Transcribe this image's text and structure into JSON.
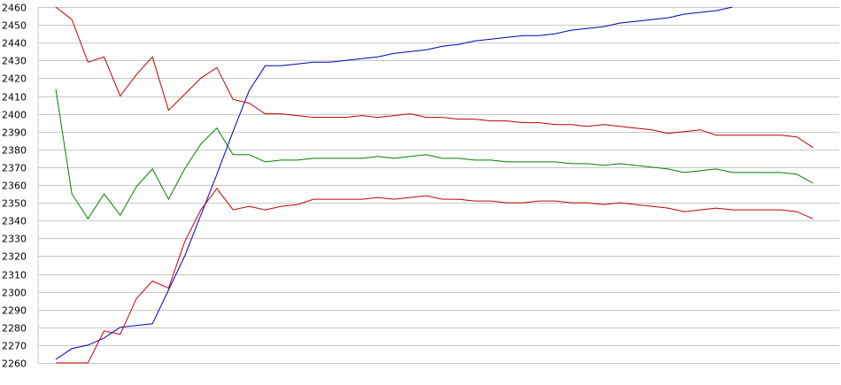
{
  "chart_data": {
    "type": "line",
    "title": "",
    "xlabel": "",
    "ylabel": "",
    "ylim": [
      2260,
      2460
    ],
    "yticks": [
      2260,
      2270,
      2280,
      2290,
      2300,
      2310,
      2320,
      2330,
      2340,
      2350,
      2360,
      2370,
      2380,
      2390,
      2400,
      2410,
      2420,
      2430,
      2440,
      2450,
      2460
    ],
    "grid": true,
    "legend": "none",
    "x": [
      0,
      1,
      2,
      3,
      4,
      5,
      6,
      7,
      8,
      9,
      10,
      11,
      12,
      13,
      14,
      15,
      16,
      17,
      18,
      19,
      20,
      21,
      22,
      23,
      24,
      25,
      26,
      27,
      28,
      29,
      30,
      31,
      32,
      33,
      34,
      35,
      36,
      37,
      38,
      39,
      40,
      41,
      42,
      43,
      44,
      45,
      46,
      47,
      48
    ],
    "series": [
      {
        "color": "#0000b4",
        "values": [
          2262,
          2268,
          2270,
          2274,
          2280,
          2281,
          2282,
          2301,
          2320,
          2343,
          2366,
          2390,
          2413,
          2427,
          2427,
          2428,
          2429,
          2429,
          2430,
          2431,
          2432,
          2434,
          2435,
          2436,
          2438,
          2439,
          2441,
          2442,
          2443,
          2444,
          2444,
          2445,
          2447,
          2448,
          2449,
          2451,
          2452,
          2453,
          2454,
          2456,
          2457,
          2458,
          2460,
          null,
          null,
          null,
          null,
          null,
          null
        ]
      },
      {
        "color": "#c00000",
        "values": [
          2460,
          2453,
          2429,
          2432,
          2410,
          2422,
          2432,
          2402,
          2411,
          2420,
          2426,
          2408,
          2406,
          2400,
          2400,
          2399,
          2398,
          2398,
          2398,
          2399,
          2398,
          2399,
          2400,
          2398,
          2398,
          2397,
          2397,
          2396,
          2396,
          2395,
          2395,
          2394,
          2394,
          2393,
          2394,
          2393,
          2392,
          2391,
          2389,
          2390,
          2391,
          2388,
          2388,
          2388,
          2388,
          2388,
          2387,
          2381,
          null
        ]
      },
      {
        "color": "#008000",
        "values": [
          2414,
          2355,
          2341,
          2355,
          2343,
          2359,
          2369,
          2352,
          2369,
          2383,
          2392,
          2377,
          2377,
          2373,
          2374,
          2374,
          2375,
          2375,
          2375,
          2375,
          2376,
          2375,
          2376,
          2377,
          2375,
          2375,
          2374,
          2374,
          2373,
          2373,
          2373,
          2373,
          2372,
          2372,
          2371,
          2372,
          2371,
          2370,
          2369,
          2367,
          2368,
          2369,
          2367,
          2367,
          2367,
          2367,
          2366,
          2361,
          null
        ]
      },
      {
        "color": "#c00000",
        "values": [
          2260,
          2260,
          2260,
          2278,
          2276,
          2296,
          2306,
          2302,
          2328,
          2346,
          2358,
          2346,
          2348,
          2346,
          2348,
          2349,
          2352,
          2352,
          2352,
          2352,
          2353,
          2352,
          2353,
          2354,
          2352,
          2352,
          2351,
          2351,
          2350,
          2350,
          2351,
          2351,
          2350,
          2350,
          2349,
          2350,
          2349,
          2348,
          2347,
          2345,
          2346,
          2347,
          2346,
          2346,
          2346,
          2346,
          2345,
          2341,
          null
        ]
      }
    ]
  }
}
